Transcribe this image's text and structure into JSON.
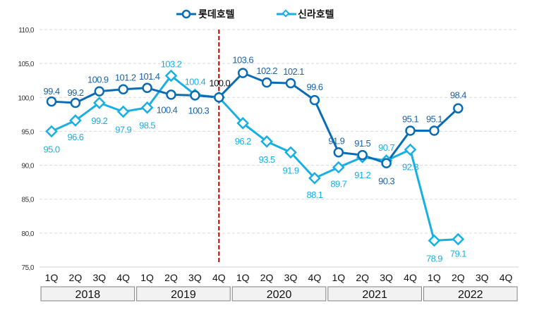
{
  "chart_data": {
    "type": "line",
    "title": "",
    "xlabel": "",
    "ylabel": "",
    "ylim": [
      75.0,
      110.0
    ],
    "yticks": [
      "110,0",
      "105,0",
      "100,0",
      "95,0",
      "90,0",
      "85,0",
      "80,0",
      "75,0"
    ],
    "ytick_values": [
      110,
      105,
      100,
      95,
      90,
      85,
      80,
      75
    ],
    "grid": true,
    "legend_position": "top-center",
    "categories": [
      "1Q",
      "2Q",
      "3Q",
      "4Q",
      "1Q",
      "2Q",
      "3Q",
      "4Q",
      "1Q",
      "2Q",
      "3Q",
      "4Q",
      "1Q",
      "2Q",
      "3Q",
      "4Q",
      "1Q",
      "2Q",
      "3Q",
      "4Q"
    ],
    "years": [
      "2018",
      "2019",
      "2020",
      "2021",
      "2022"
    ],
    "reference_line": {
      "at_index": 7,
      "color": "#c00000",
      "style": "dashed"
    },
    "series": [
      {
        "name": "롯데호텔",
        "color": "#0a6cb4",
        "marker": "circle",
        "values": [
          99.4,
          99.2,
          100.9,
          101.2,
          101.4,
          100.4,
          100.3,
          100.0,
          103.6,
          102.2,
          102.1,
          99.6,
          91.9,
          91.5,
          90.3,
          95.1,
          95.1,
          98.4,
          null,
          null
        ],
        "labels": [
          "99.4",
          "99.2",
          "100.9",
          "101.2",
          "101.4",
          "100.4",
          "100.3",
          "100.0",
          "103.6",
          "102.2",
          "102.1",
          "99.6",
          "91.9",
          "91.5",
          "90.3",
          "95.1",
          "95.1",
          "98.4",
          "",
          ""
        ]
      },
      {
        "name": "신라호텔",
        "color": "#19afe3",
        "marker": "diamond",
        "values": [
          95.0,
          96.6,
          99.2,
          97.9,
          98.5,
          103.2,
          100.4,
          100.0,
          96.2,
          93.5,
          91.9,
          88.1,
          89.7,
          91.2,
          90.7,
          92.3,
          78.9,
          79.1,
          null,
          null
        ],
        "labels": [
          "95.0",
          "96.6",
          "99.2",
          "97.9",
          "98.5",
          "103.2",
          "100.4",
          "",
          "96.2",
          "93.5",
          "91.9",
          "88.1",
          "89.7",
          "91.2",
          "90.7",
          "92.3",
          "78.9",
          "79.1",
          "",
          ""
        ]
      }
    ],
    "shared_label": {
      "index": 7,
      "text": "100.0",
      "color": "#111111"
    }
  }
}
